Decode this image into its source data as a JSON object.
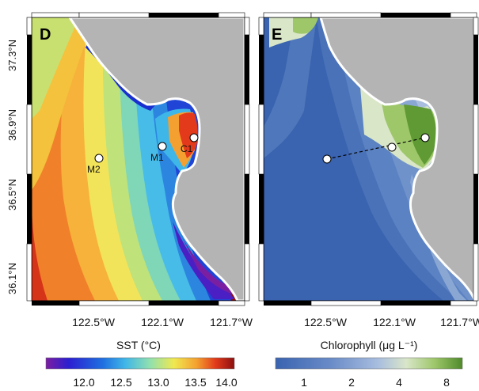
{
  "panels": {
    "sst": {
      "letter": "D",
      "stations": [
        {
          "name": "M2",
          "lon": -122.39,
          "lat": 36.7
        },
        {
          "name": "M1",
          "lon": -122.03,
          "lat": 36.75
        },
        {
          "name": "C1",
          "lon": -121.88,
          "lat": 36.8
        }
      ]
    },
    "chl": {
      "letter": "E",
      "transect_label": ""
    }
  },
  "axes": {
    "y_ticks": [
      "37.3°N",
      "36.9°N",
      "36.5°N",
      "36.1°N"
    ],
    "x_ticks": [
      "122.5°W",
      "122.1°W",
      "121.7°W"
    ]
  },
  "colorbars": {
    "sst": {
      "title": "SST (°C)",
      "ticks": [
        "12.0",
        "12.5",
        "13.0",
        "13.5",
        "14.0"
      ],
      "range": [
        11.5,
        14.0
      ],
      "colors": [
        "#7b1fa2",
        "#2b1fd0",
        "#1f6fe0",
        "#3fb6e8",
        "#8fe0b0",
        "#f0e850",
        "#f4a030",
        "#e23a1a",
        "#8b0f0f"
      ]
    },
    "chl": {
      "title": "Chlorophyll (μg L⁻¹)",
      "ticks": [
        "1",
        "2",
        "4",
        "8"
      ],
      "colors": [
        "#3a63b0",
        "#6a8cc8",
        "#a9bedf",
        "#d9e6c8",
        "#9ec76a",
        "#4f8a2a"
      ]
    }
  },
  "land_color": "#b4b4b4"
}
